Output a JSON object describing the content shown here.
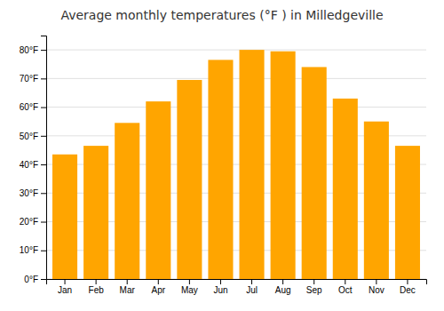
{
  "chart_data": {
    "type": "bar",
    "title": "Average monthly temperatures (°F ) in Milledgeville",
    "categories": [
      "Jan",
      "Feb",
      "Mar",
      "Apr",
      "May",
      "Jun",
      "Jul",
      "Aug",
      "Sep",
      "Oct",
      "Nov",
      "Dec"
    ],
    "values": [
      43.5,
      46.5,
      54.5,
      62.0,
      69.5,
      76.5,
      80.0,
      79.5,
      74.0,
      63.0,
      55.0,
      46.5
    ],
    "color": "#FFA500",
    "ylim": [
      0,
      85
    ],
    "yticks": [
      {
        "value": 0,
        "label": "0°F"
      },
      {
        "value": 10,
        "label": "10°F"
      },
      {
        "value": 20,
        "label": "20°F"
      },
      {
        "value": 30,
        "label": "30°F"
      },
      {
        "value": 40,
        "label": "40°F"
      },
      {
        "value": 50,
        "label": "50°F"
      },
      {
        "value": 60,
        "label": "60°F"
      },
      {
        "value": 70,
        "label": "70°F"
      },
      {
        "value": 80,
        "label": "80°F"
      }
    ],
    "grid": true
  }
}
